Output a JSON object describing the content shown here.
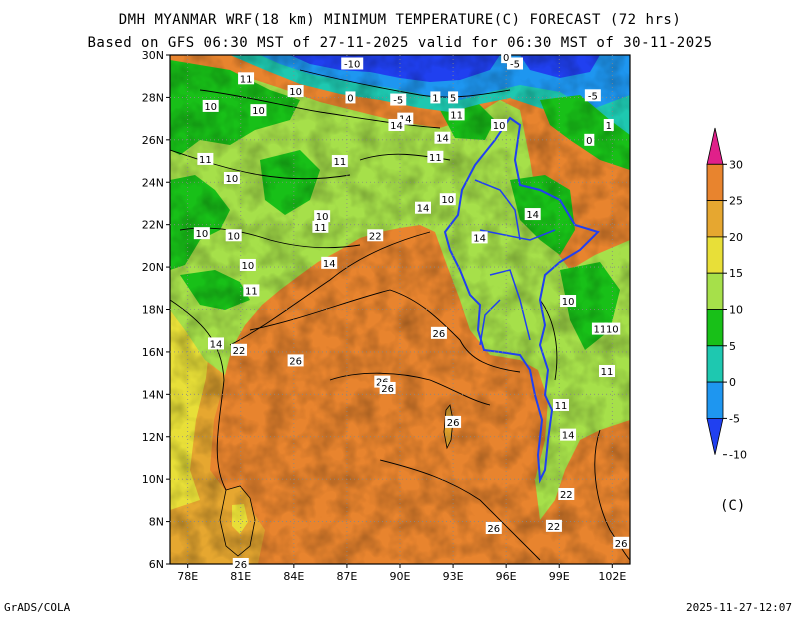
{
  "title": {
    "line1": "DMH MYANMAR WRF(18 km) MINIMUM TEMPERATURE(C) FORECAST (72 hrs)",
    "line2": "Based on GFS 06:30 MST of 27-11-2025 valid for 06:30 MST of 30-11-2025"
  },
  "footer": {
    "credit": "GrADS/COLA",
    "timestamp": "2025-11-27-12:07"
  },
  "colorbar": {
    "unit": "(C)",
    "tick_labels": [
      "30",
      "25",
      "20",
      "15",
      "10",
      "5",
      "0",
      "-5",
      "-10"
    ],
    "bins": [
      {
        "color": "#e0208a"
      },
      {
        "color": "#e8842e"
      },
      {
        "color": "#e6a730"
      },
      {
        "color": "#e8df38"
      },
      {
        "color": "#a6e04a"
      },
      {
        "color": "#18c018"
      },
      {
        "color": "#1ec8b0"
      },
      {
        "color": "#1e96f0"
      },
      {
        "color": "#2040f0"
      }
    ]
  },
  "map": {
    "lon_labels": [
      "78E",
      "81E",
      "84E",
      "87E",
      "90E",
      "93E",
      "96E",
      "99E",
      "102E"
    ],
    "lat_labels": [
      "30N",
      "28N",
      "26N",
      "24N",
      "22N",
      "20N",
      "18N",
      "16N",
      "14N",
      "12N",
      "10N",
      "8N",
      "6N"
    ],
    "lon_range": [
      77,
      103
    ],
    "lat_range": [
      6,
      30
    ],
    "contour_labels": [
      {
        "text": "-10",
        "lon": 87.3,
        "lat": 29.6
      },
      {
        "text": "-5",
        "lon": 96.5,
        "lat": 29.6
      },
      {
        "text": "-5",
        "lon": 100.9,
        "lat": 28.1
      },
      {
        "text": "-5",
        "lon": 89.9,
        "lat": 27.9
      },
      {
        "text": "0",
        "lon": 96.0,
        "lat": 29.9
      },
      {
        "text": "0",
        "lon": 87.2,
        "lat": 28.0
      },
      {
        "text": "0",
        "lon": 100.7,
        "lat": 26.0
      },
      {
        "text": "1",
        "lon": 92.0,
        "lat": 28.0
      },
      {
        "text": "1",
        "lon": 101.8,
        "lat": 26.7
      },
      {
        "text": "5",
        "lon": 93.0,
        "lat": 28.0
      },
      {
        "text": "11",
        "lon": 81.3,
        "lat": 28.9
      },
      {
        "text": "10",
        "lon": 84.1,
        "lat": 28.3
      },
      {
        "text": "10",
        "lon": 79.3,
        "lat": 27.6
      },
      {
        "text": "10",
        "lon": 82.0,
        "lat": 27.4
      },
      {
        "text": "14",
        "lon": 90.3,
        "lat": 27.0
      },
      {
        "text": "14",
        "lon": 89.8,
        "lat": 26.7
      },
      {
        "text": "11",
        "lon": 93.2,
        "lat": 27.2
      },
      {
        "text": "14",
        "lon": 92.4,
        "lat": 26.1
      },
      {
        "text": "10",
        "lon": 95.6,
        "lat": 26.7
      },
      {
        "text": "11",
        "lon": 79.0,
        "lat": 25.1
      },
      {
        "text": "11",
        "lon": 86.6,
        "lat": 25.0
      },
      {
        "text": "11",
        "lon": 92.0,
        "lat": 25.2
      },
      {
        "text": "10",
        "lon": 80.5,
        "lat": 24.2
      },
      {
        "text": "14",
        "lon": 91.3,
        "lat": 22.8
      },
      {
        "text": "10",
        "lon": 92.7,
        "lat": 23.2
      },
      {
        "text": "10",
        "lon": 85.6,
        "lat": 22.4
      },
      {
        "text": "11",
        "lon": 85.5,
        "lat": 21.9
      },
      {
        "text": "10",
        "lon": 78.8,
        "lat": 21.6
      },
      {
        "text": "10",
        "lon": 80.6,
        "lat": 21.5
      },
      {
        "text": "22",
        "lon": 88.6,
        "lat": 21.5
      },
      {
        "text": "14",
        "lon": 94.5,
        "lat": 21.4
      },
      {
        "text": "14",
        "lon": 97.5,
        "lat": 22.5
      },
      {
        "text": "10",
        "lon": 81.4,
        "lat": 20.1
      },
      {
        "text": "14",
        "lon": 86.0,
        "lat": 20.2
      },
      {
        "text": "11",
        "lon": 81.6,
        "lat": 18.9
      },
      {
        "text": "10",
        "lon": 99.5,
        "lat": 18.4
      },
      {
        "text": "11",
        "lon": 101.3,
        "lat": 17.1
      },
      {
        "text": "10",
        "lon": 102.0,
        "lat": 17.1
      },
      {
        "text": "26",
        "lon": 92.2,
        "lat": 16.9
      },
      {
        "text": "14",
        "lon": 79.6,
        "lat": 16.4
      },
      {
        "text": "22",
        "lon": 80.9,
        "lat": 16.1
      },
      {
        "text": "26",
        "lon": 84.1,
        "lat": 15.6
      },
      {
        "text": "11",
        "lon": 101.7,
        "lat": 15.1
      },
      {
        "text": "26",
        "lon": 89.0,
        "lat": 14.6
      },
      {
        "text": "26",
        "lon": 89.3,
        "lat": 14.3
      },
      {
        "text": "11",
        "lon": 99.1,
        "lat": 13.5
      },
      {
        "text": "26",
        "lon": 93.0,
        "lat": 12.7
      },
      {
        "text": "14",
        "lon": 99.5,
        "lat": 12.1
      },
      {
        "text": "22",
        "lon": 99.4,
        "lat": 9.3
      },
      {
        "text": "22",
        "lon": 98.7,
        "lat": 7.8
      },
      {
        "text": "26",
        "lon": 95.3,
        "lat": 7.7
      },
      {
        "text": "26",
        "lon": 102.5,
        "lat": 7.0
      },
      {
        "text": "26",
        "lon": 81.0,
        "lat": 6.0
      }
    ]
  }
}
